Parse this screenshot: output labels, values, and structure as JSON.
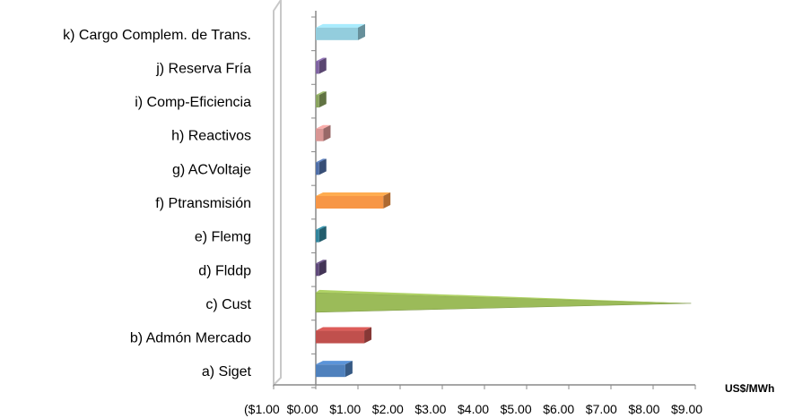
{
  "chart_data": {
    "type": "bar",
    "orientation": "horizontal",
    "style": "3d",
    "title": "",
    "xlabel": "US$/MWh",
    "ylabel": "",
    "xlim": [
      -1,
      9
    ],
    "x_ticks": [
      "($1.00",
      "$0.00",
      "$1.00",
      "$2.00",
      "$3.00",
      "$4.00",
      "$5.00",
      "$6.00",
      "$7.00",
      "$8.00",
      "$9.00"
    ],
    "grid": false,
    "legend": "none",
    "categories": [
      "a) Siget",
      "b) Admón Mercado",
      "c) Cust",
      "d) Flddp",
      "e) Flemg",
      "f) Ptransmisión",
      "g) ACVoltaje",
      "h) Reactivos",
      "i) Comp-Eficiencia",
      "j) Reserva Fría",
      "k) Cargo Complem. de Trans."
    ],
    "values": [
      0.7,
      1.15,
      8.9,
      0.08,
      0.08,
      1.6,
      0.08,
      0.18,
      0.08,
      0.08,
      1.0
    ],
    "colors": [
      "#4f81bd",
      "#c0504d",
      "#9bbb59",
      "#604a7b",
      "#31859c",
      "#f79646",
      "#4f6fa8",
      "#d99694",
      "#8aa55f",
      "#8064a2",
      "#93cddd"
    ]
  }
}
